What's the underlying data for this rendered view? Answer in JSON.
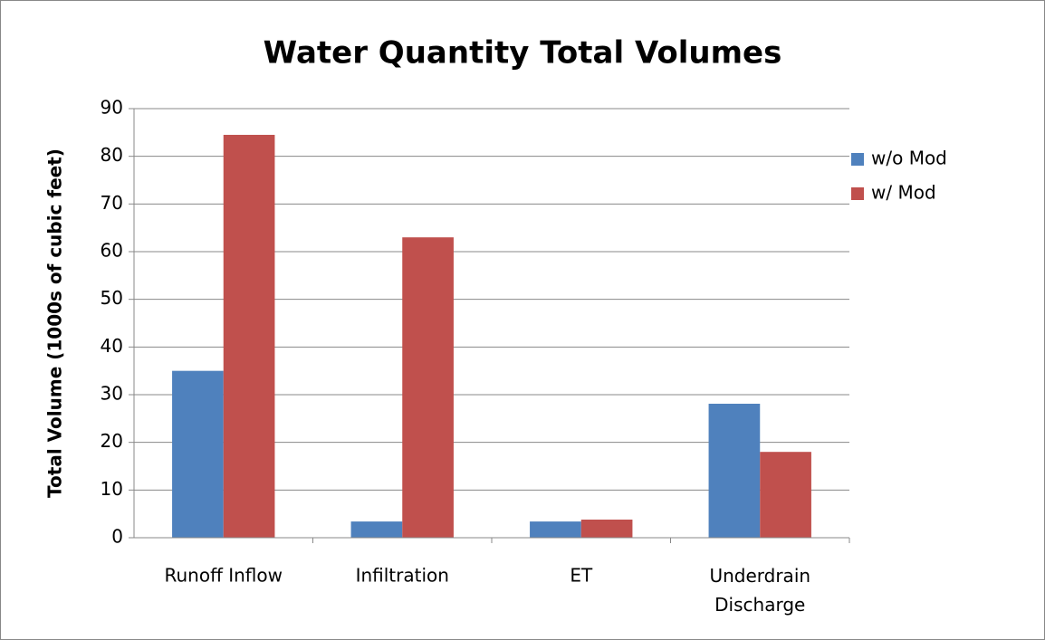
{
  "chart_data": {
    "type": "bar",
    "title": "Water Quantity Total Volumes",
    "y_label": "Total Volume (1000s of cubic feet)",
    "categories": [
      "Runoff Inflow",
      "Infiltration",
      "ET",
      "Underdrain Discharge"
    ],
    "series": [
      {
        "name": "w/o Mod",
        "color": "#4f81bd",
        "values": [
          35,
          3.4,
          3.4,
          28.1
        ]
      },
      {
        "name": "w/ Mod",
        "color": "#c0504d",
        "values": [
          84.5,
          63,
          3.8,
          18
        ]
      }
    ],
    "ylim": [
      0,
      90
    ],
    "yticks": [
      0,
      10,
      20,
      30,
      40,
      50,
      60,
      70,
      80,
      90
    ],
    "grid": true,
    "legend": "right"
  }
}
